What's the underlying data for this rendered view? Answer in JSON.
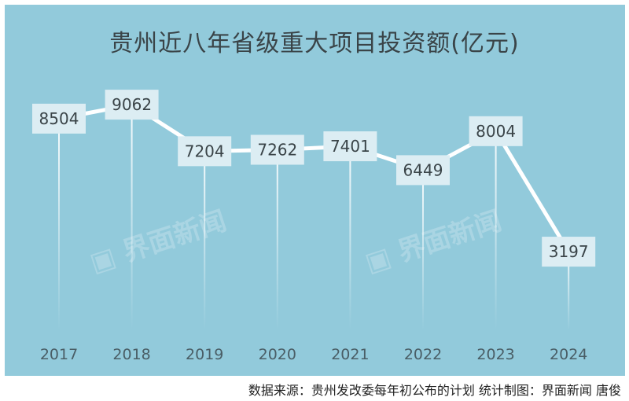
{
  "chart_data": {
    "type": "line",
    "title": "贵州近八年省级重大项目投资额(亿元)",
    "categories": [
      "2017",
      "2018",
      "2019",
      "2020",
      "2021",
      "2022",
      "2023",
      "2024"
    ],
    "values": [
      8504,
      9062,
      7204,
      7262,
      7401,
      6449,
      8004,
      3197
    ],
    "xlabel": "",
    "ylabel": "",
    "grid": false,
    "legend": "none",
    "data_labels": true,
    "colors": {
      "background": "#92cadb",
      "line": "#ffffff",
      "label_box": "#dcedf3",
      "text": "#3a4448"
    }
  },
  "footer": "数据来源：贵州发改委每年初公布的计划  统计制图：界面新闻 唐俊",
  "watermark": "界面新闻"
}
